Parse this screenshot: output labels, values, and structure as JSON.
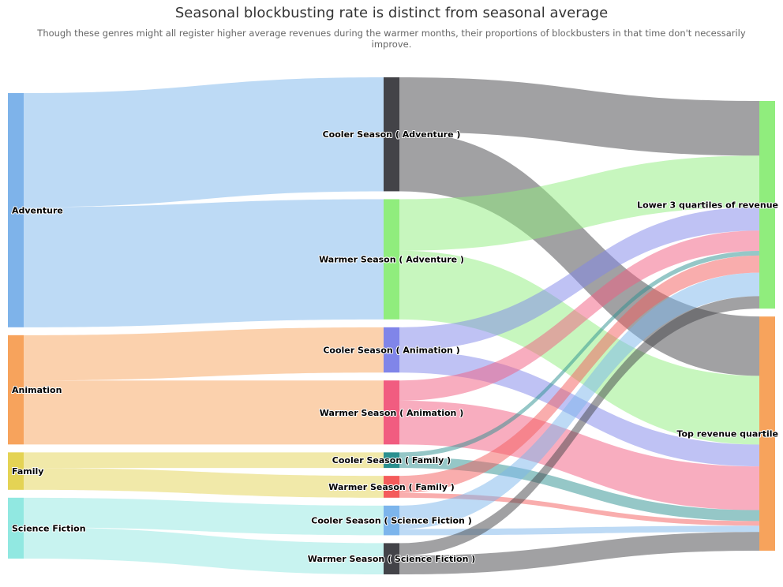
{
  "chart_data": {
    "type": "sankey",
    "title": "Seasonal blockbusting rate is distinct from seasonal average",
    "subtitle": "Though these genres might all register higher average revenues during the warmer months, their proportions of blockbusters in that time don't necessarily improve.",
    "nodes": [
      {
        "id": "adv",
        "label": "Adventure",
        "column": 0,
        "color": "#7eb3ea"
      },
      {
        "id": "ani",
        "label": "Animation",
        "column": 0,
        "color": "#f7a35c"
      },
      {
        "id": "fam",
        "label": "Family",
        "column": 0,
        "color": "#e4d354"
      },
      {
        "id": "sci",
        "label": "Science Fiction",
        "column": 0,
        "color": "#91e8e1"
      },
      {
        "id": "cool_adv",
        "label": "Cooler Season ( Adventure )",
        "column": 1,
        "color": "#434348"
      },
      {
        "id": "warm_adv",
        "label": "Warmer Season ( Adventure )",
        "column": 1,
        "color": "#90ed7d"
      },
      {
        "id": "cool_ani",
        "label": "Cooler Season ( Animation )",
        "column": 1,
        "color": "#8085e9"
      },
      {
        "id": "warm_ani",
        "label": "Warmer Season ( Animation )",
        "column": 1,
        "color": "#f15c80"
      },
      {
        "id": "cool_fam",
        "label": "Cooler Season ( Family )",
        "column": 1,
        "color": "#2b908f"
      },
      {
        "id": "warm_fam",
        "label": "Warmer Season ( Family )",
        "column": 1,
        "color": "#f45b5b"
      },
      {
        "id": "cool_sci",
        "label": "Cooler Season ( Science Fiction )",
        "column": 1,
        "color": "#7cb5ec"
      },
      {
        "id": "warm_sci",
        "label": "Warmer Season ( Science Fiction )",
        "column": 1,
        "color": "#434348"
      },
      {
        "id": "lower",
        "label": "Lower 3 quartiles of revenue",
        "column": 2,
        "color": "#90ed7d"
      },
      {
        "id": "top",
        "label": "Top revenue quartile",
        "column": 2,
        "color": "#f7a35c"
      }
    ],
    "links": [
      {
        "from": "adv",
        "to": "cool_adv",
        "value": 73,
        "color": "#7cb5ec"
      },
      {
        "from": "adv",
        "to": "warm_adv",
        "value": 77,
        "color": "#7cb5ec"
      },
      {
        "from": "ani",
        "to": "cool_ani",
        "value": 29,
        "color": "#f7a35c"
      },
      {
        "from": "ani",
        "to": "warm_ani",
        "value": 41,
        "color": "#f7a35c"
      },
      {
        "from": "fam",
        "to": "cool_fam",
        "value": 10,
        "color": "#e4d354"
      },
      {
        "from": "fam",
        "to": "warm_fam",
        "value": 14,
        "color": "#e4d354"
      },
      {
        "from": "sci",
        "to": "cool_sci",
        "value": 19,
        "color": "#91e8e1"
      },
      {
        "from": "sci",
        "to": "warm_sci",
        "value": 20,
        "color": "#91e8e1"
      },
      {
        "from": "cool_adv",
        "to": "lower",
        "value": 35,
        "color": "#434348"
      },
      {
        "from": "cool_adv",
        "to": "top",
        "value": 38,
        "color": "#434348"
      },
      {
        "from": "warm_adv",
        "to": "lower",
        "value": 33,
        "color": "#90ed7d"
      },
      {
        "from": "warm_adv",
        "to": "top",
        "value": 44,
        "color": "#90ed7d"
      },
      {
        "from": "cool_ani",
        "to": "lower",
        "value": 15,
        "color": "#8085e9"
      },
      {
        "from": "cool_ani",
        "to": "top",
        "value": 14,
        "color": "#8085e9"
      },
      {
        "from": "warm_ani",
        "to": "lower",
        "value": 13,
        "color": "#f15c80"
      },
      {
        "from": "warm_ani",
        "to": "top",
        "value": 28,
        "color": "#f15c80"
      },
      {
        "from": "cool_fam",
        "to": "lower",
        "value": 3,
        "color": "#2b908f"
      },
      {
        "from": "cool_fam",
        "to": "top",
        "value": 7,
        "color": "#2b908f"
      },
      {
        "from": "warm_fam",
        "to": "lower",
        "value": 11,
        "color": "#f45b5b"
      },
      {
        "from": "warm_fam",
        "to": "top",
        "value": 3,
        "color": "#f45b5b"
      },
      {
        "from": "cool_sci",
        "to": "lower",
        "value": 15,
        "color": "#7cb5ec"
      },
      {
        "from": "cool_sci",
        "to": "top",
        "value": 4,
        "color": "#7cb5ec"
      },
      {
        "from": "warm_sci",
        "to": "lower",
        "value": 8,
        "color": "#434348"
      },
      {
        "from": "warm_sci",
        "to": "top",
        "value": 12,
        "color": "#434348"
      }
    ]
  }
}
